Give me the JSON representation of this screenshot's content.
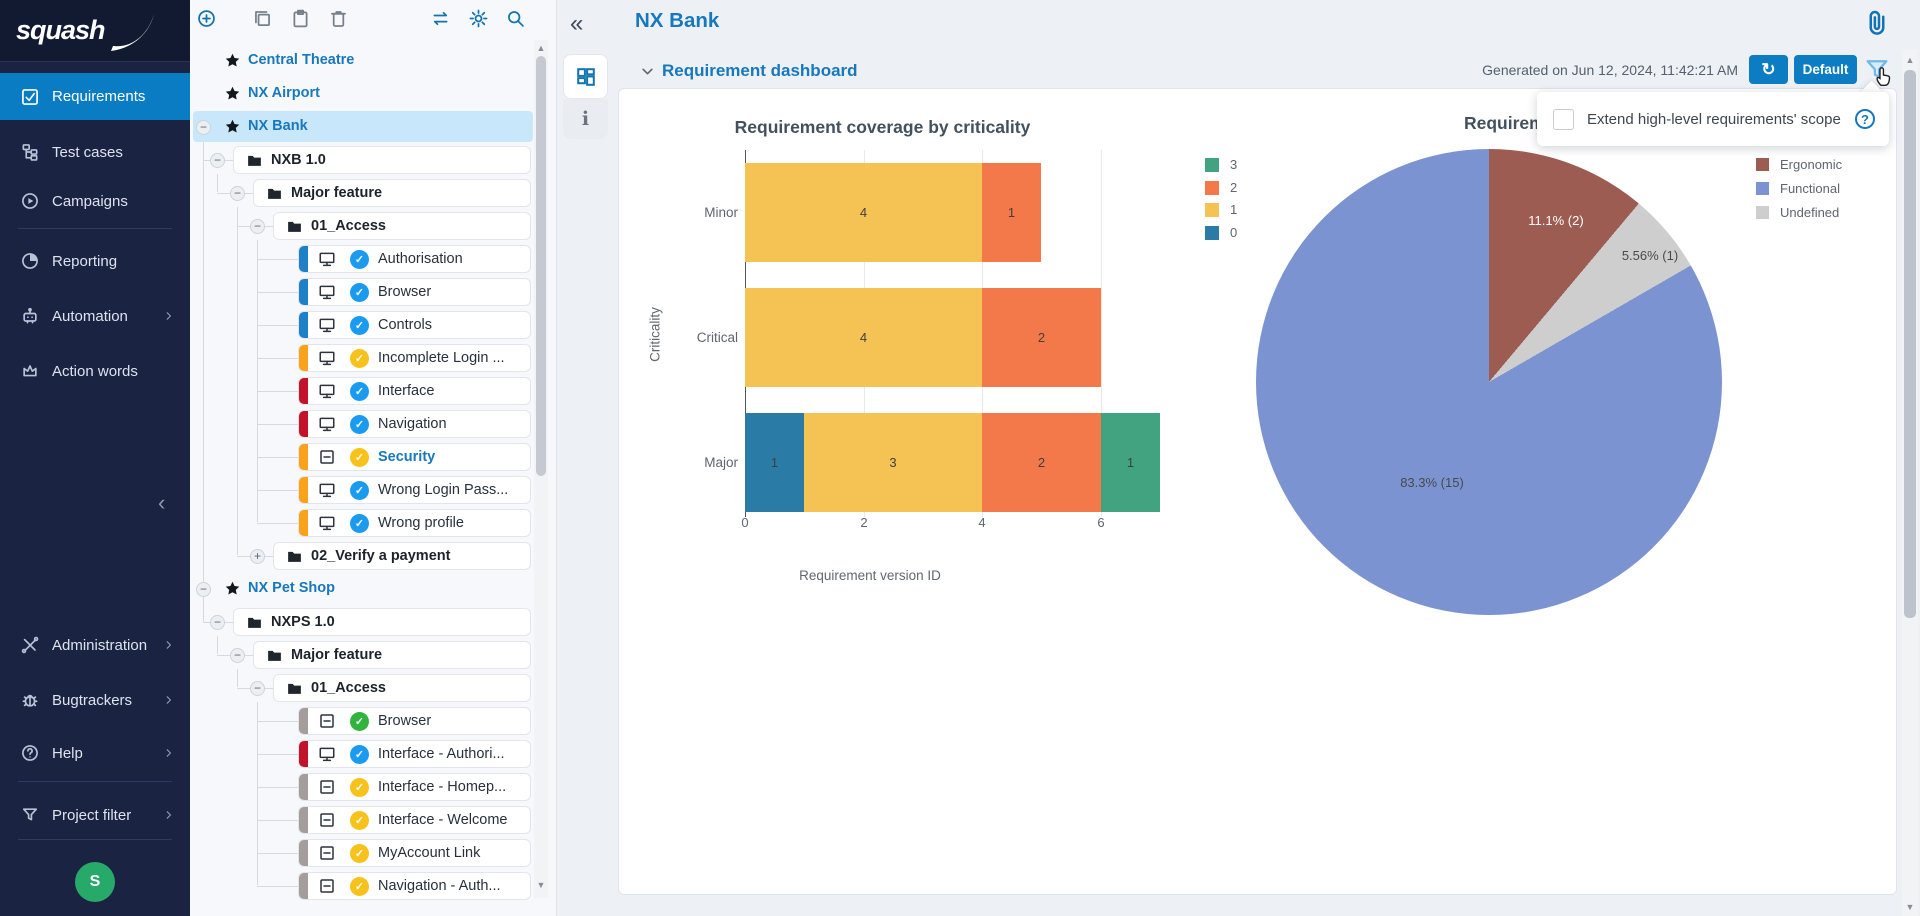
{
  "sidebar": {
    "logo_text": "squash",
    "avatar_initial": "S",
    "collapse_icon": "‹",
    "nav_top": [
      {
        "label": "Requirements",
        "icon": "checkbox-check",
        "active": true
      },
      {
        "label": "Test cases",
        "icon": "test-tree"
      },
      {
        "label": "Campaigns",
        "icon": "play-circle"
      },
      {
        "divider": true
      },
      {
        "label": "Reporting",
        "icon": "pie-circle"
      },
      {
        "label": "Automation",
        "icon": "robot",
        "chevron": true
      },
      {
        "label": "Action words",
        "icon": "crown"
      }
    ],
    "nav_bottom": [
      {
        "label": "Administration",
        "icon": "tools",
        "chevron": true
      },
      {
        "label": "Bugtrackers",
        "icon": "bug",
        "chevron": true
      },
      {
        "label": "Help",
        "icon": "help-circle",
        "chevron": true
      },
      {
        "divider": true
      },
      {
        "label": "Project filter",
        "icon": "funnel",
        "chevron": true
      },
      {
        "divider": true
      }
    ]
  },
  "tree": {
    "toolbar": [
      {
        "icon": "plus-circle",
        "tone": "blue"
      },
      {
        "icon": "copy",
        "tone": "gray"
      },
      {
        "icon": "clipboard",
        "tone": "gray"
      },
      {
        "icon": "trash",
        "tone": "gray"
      },
      {
        "icon": "swap-arrows",
        "tone": "blue"
      },
      {
        "icon": "gear",
        "tone": "blue"
      },
      {
        "icon": "search",
        "tone": "blue"
      }
    ],
    "rows": [
      {
        "label": "Central Theatre",
        "level": 0,
        "kind": "project"
      },
      {
        "label": "NX Airport",
        "level": 0,
        "kind": "project"
      },
      {
        "label": "NX Bank",
        "level": 0,
        "kind": "project",
        "toggle": "minus",
        "selected": true
      },
      {
        "label": "NXB 1.0",
        "level": 1,
        "kind": "folder",
        "toggle": "minus"
      },
      {
        "label": "Major feature",
        "level": 2,
        "kind": "folder",
        "toggle": "minus"
      },
      {
        "label": "01_Access",
        "level": 3,
        "kind": "folder",
        "toggle": "minus"
      },
      {
        "label": "Authorisation",
        "level": 4,
        "kind": "requirement",
        "strip": "blue",
        "icon": "monitor",
        "status": "blue"
      },
      {
        "label": "Browser",
        "level": 4,
        "kind": "requirement",
        "strip": "blue",
        "icon": "monitor",
        "status": "blue"
      },
      {
        "label": "Controls",
        "level": 4,
        "kind": "requirement",
        "strip": "blue",
        "icon": "monitor",
        "status": "blue"
      },
      {
        "label": "Incomplete Login ...",
        "level": 4,
        "kind": "requirement",
        "strip": "orange",
        "icon": "monitor",
        "status": "yellow"
      },
      {
        "label": "Interface",
        "level": 4,
        "kind": "requirement",
        "strip": "red",
        "icon": "monitor",
        "status": "blue"
      },
      {
        "label": "Navigation",
        "level": 4,
        "kind": "requirement",
        "strip": "red",
        "icon": "monitor",
        "status": "blue"
      },
      {
        "label": "Security",
        "level": 4,
        "kind": "requirement",
        "strip": "orange",
        "icon": "boxminus",
        "status": "yellow",
        "highlight": true
      },
      {
        "label": "Wrong Login Pass...",
        "level": 4,
        "kind": "requirement",
        "strip": "orange",
        "icon": "monitor",
        "status": "blue"
      },
      {
        "label": "Wrong profile",
        "level": 4,
        "kind": "requirement",
        "strip": "orange",
        "icon": "monitor",
        "status": "blue"
      },
      {
        "label": "02_Verify a payment",
        "level": 3,
        "kind": "folder",
        "toggle": "plus"
      },
      {
        "label": "NX Pet Shop",
        "level": 0,
        "kind": "project",
        "toggle": "minus"
      },
      {
        "label": "NXPS 1.0",
        "level": 1,
        "kind": "folder",
        "toggle": "minus"
      },
      {
        "label": "Major feature",
        "level": 2,
        "kind": "folder",
        "toggle": "minus"
      },
      {
        "label": "01_Access",
        "level": 3,
        "kind": "folder",
        "toggle": "minus"
      },
      {
        "label": "Browser",
        "level": 4,
        "kind": "requirement",
        "strip": "gray",
        "icon": "boxminus",
        "status": "green"
      },
      {
        "label": "Interface - Authori...",
        "level": 4,
        "kind": "requirement",
        "strip": "red",
        "icon": "monitor",
        "status": "blue"
      },
      {
        "label": "Interface - Homep...",
        "level": 4,
        "kind": "requirement",
        "strip": "gray",
        "icon": "boxminus",
        "status": "yellow"
      },
      {
        "label": "Interface - Welcome",
        "level": 4,
        "kind": "requirement",
        "strip": "gray",
        "icon": "boxminus",
        "status": "yellow"
      },
      {
        "label": "MyAccount Link",
        "level": 4,
        "kind": "requirement",
        "strip": "gray",
        "icon": "boxminus",
        "status": "yellow"
      },
      {
        "label": "Navigation - Auth...",
        "level": 4,
        "kind": "requirement",
        "strip": "gray",
        "icon": "boxminus",
        "status": "yellow"
      }
    ],
    "strip_colors": {
      "blue": "#1e80c9",
      "orange": "#f9a21a",
      "red": "#c3132b",
      "gray": "#a59c9c"
    },
    "status_colors": {
      "blue": "#1a9bf0",
      "yellow": "#f8c21b",
      "green": "#30b43e"
    }
  },
  "main": {
    "collapse_icon": "«",
    "title": "NX Bank",
    "section_title": "Requirement dashboard",
    "generated": "Generated on Jun 12, 2024, 11:42:21 AM",
    "refresh_icon": "↻",
    "default_button": "Default",
    "popup": {
      "label": "Extend high-level requirements' scope",
      "help_icon": "?"
    }
  },
  "chart_data": [
    {
      "type": "bar",
      "title": "Requirement coverage by criticality",
      "orientation": "horizontal",
      "stacked": true,
      "categories": [
        "Minor",
        "Critical",
        "Major"
      ],
      "series": [
        {
          "name": "0",
          "color": "#2a7ca6",
          "values": [
            0,
            0,
            1
          ]
        },
        {
          "name": "1",
          "color": "#f5c353",
          "values": [
            4,
            4,
            3
          ]
        },
        {
          "name": "2",
          "color": "#f3794a",
          "values": [
            1,
            2,
            2
          ]
        },
        {
          "name": "3",
          "color": "#42a380",
          "values": [
            0,
            0,
            1
          ]
        }
      ],
      "legend_order": [
        "3",
        "2",
        "1",
        "0"
      ],
      "xlabel": "Requirement version ID",
      "ylabel": "Criticality",
      "xticks": [
        0,
        2,
        4,
        6
      ],
      "xlim": [
        0,
        7
      ],
      "grid": true
    },
    {
      "type": "pie",
      "title_visible": "Requirem",
      "slices": [
        {
          "label": "Ergonomic",
          "value": 2,
          "display": "11.1% (2)",
          "color": "#9d5c51",
          "label_color": "#ffffff"
        },
        {
          "label": "Undefined",
          "value": 1,
          "display": "5.56% (1)",
          "color": "#cecece",
          "label_color": "#4a4a4a"
        },
        {
          "label": "Functional",
          "value": 15,
          "display": "83.3% (15)",
          "color": "#7b93d0",
          "label_color": "#4a4a4a"
        }
      ],
      "legend": [
        {
          "label": "Ergonomic",
          "color": "#9d5c51"
        },
        {
          "label": "Functional",
          "color": "#7b93d0"
        },
        {
          "label": "Undefined",
          "color": "#cecece"
        }
      ],
      "legend_position": "right"
    }
  ]
}
